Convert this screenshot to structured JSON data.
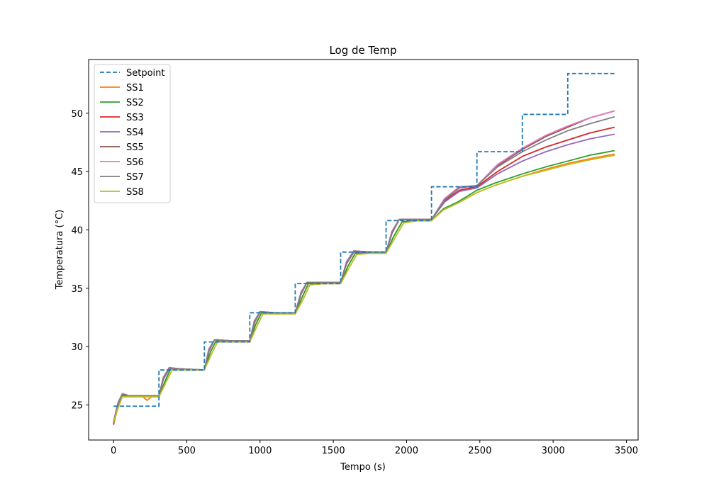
{
  "chart_data": {
    "type": "line",
    "title": "Log de Temp",
    "xlabel": "Tempo (s)",
    "ylabel": "Temperatura (°C)",
    "xlim": [
      -170,
      3580
    ],
    "ylim": [
      22.0,
      54.6
    ],
    "xticks": [
      0,
      500,
      1000,
      1500,
      2000,
      2500,
      3000,
      3500
    ],
    "yticks": [
      25,
      30,
      35,
      40,
      45,
      50
    ],
    "grid": false,
    "legend": "top-left",
    "setpoint": {
      "name": "Setpoint",
      "color": "#1f77b4",
      "dash": true,
      "steps": [
        {
          "t": 0,
          "v": 24.9
        },
        {
          "t": 310,
          "v": 28.0
        },
        {
          "t": 620,
          "v": 30.4
        },
        {
          "t": 930,
          "v": 32.9
        },
        {
          "t": 1240,
          "v": 35.4
        },
        {
          "t": 1550,
          "v": 38.1
        },
        {
          "t": 1860,
          "v": 40.8
        },
        {
          "t": 2170,
          "v": 43.7
        },
        {
          "t": 2480,
          "v": 46.7
        },
        {
          "t": 2790,
          "v": 49.9
        },
        {
          "t": 3100,
          "v": 53.4
        }
      ],
      "t_end": 3420
    },
    "series": [
      {
        "name": "SS1",
        "color": "#ff7f0e",
        "x": [
          0,
          30,
          60,
          80,
          100,
          150,
          200,
          230,
          260,
          310,
          350,
          390,
          450,
          550,
          620,
          660,
          700,
          800,
          930,
          970,
          1010,
          1100,
          1240,
          1290,
          1330,
          1450,
          1550,
          1600,
          1650,
          1760,
          1860,
          1910,
          1970,
          2080,
          2170,
          2250,
          2350,
          2480,
          2600,
          2790,
          2950,
          3100,
          3250,
          3420
        ],
        "values": [
          23.4,
          24.8,
          25.8,
          25.8,
          25.7,
          25.7,
          25.7,
          25.4,
          25.7,
          25.7,
          27.0,
          28.1,
          28.1,
          28.0,
          28.0,
          29.5,
          30.5,
          30.5,
          30.5,
          31.9,
          32.9,
          32.9,
          32.9,
          34.3,
          35.4,
          35.4,
          35.4,
          36.9,
          38.0,
          38.0,
          38.0,
          39.4,
          40.7,
          40.8,
          40.8,
          41.7,
          42.3,
          43.2,
          43.8,
          44.6,
          45.2,
          45.7,
          46.1,
          46.5
        ]
      },
      {
        "name": "SS2",
        "color": "#2ca02c",
        "x": [
          0,
          30,
          60,
          80,
          100,
          200,
          310,
          350,
          390,
          450,
          620,
          660,
          700,
          800,
          930,
          970,
          1010,
          1100,
          1240,
          1290,
          1330,
          1450,
          1550,
          1600,
          1650,
          1760,
          1860,
          1910,
          1970,
          2080,
          2170,
          2250,
          2350,
          2480,
          2600,
          2790,
          2950,
          3100,
          3250,
          3420
        ],
        "values": [
          23.5,
          24.9,
          25.8,
          25.8,
          25.7,
          25.7,
          25.7,
          27.0,
          28.1,
          28.1,
          28.0,
          29.5,
          30.5,
          30.5,
          30.5,
          31.9,
          32.9,
          32.9,
          32.9,
          34.3,
          35.4,
          35.4,
          35.4,
          36.9,
          38.0,
          38.0,
          38.0,
          39.4,
          40.7,
          40.8,
          40.8,
          41.8,
          42.4,
          43.4,
          44.0,
          44.8,
          45.4,
          45.9,
          46.4,
          46.8
        ]
      },
      {
        "name": "SS3",
        "color": "#d62728",
        "x": [
          0,
          30,
          60,
          80,
          100,
          200,
          310,
          340,
          380,
          450,
          620,
          650,
          690,
          800,
          930,
          960,
          1000,
          1100,
          1240,
          1280,
          1320,
          1450,
          1550,
          1590,
          1640,
          1760,
          1860,
          1900,
          1950,
          2080,
          2170,
          2260,
          2360,
          2480,
          2620,
          2790,
          2950,
          3100,
          3250,
          3420
        ],
        "values": [
          23.3,
          24.9,
          25.9,
          25.9,
          25.8,
          25.8,
          25.8,
          27.2,
          28.1,
          28.1,
          28.0,
          29.6,
          30.6,
          30.5,
          30.5,
          32.0,
          33.0,
          32.9,
          32.9,
          34.5,
          35.5,
          35.5,
          35.5,
          37.1,
          38.1,
          38.1,
          38.1,
          39.7,
          40.9,
          40.9,
          40.9,
          42.5,
          43.4,
          43.7,
          45.0,
          46.3,
          47.1,
          47.7,
          48.3,
          48.8
        ]
      },
      {
        "name": "SS4",
        "color": "#9467bd",
        "x": [
          0,
          30,
          60,
          80,
          100,
          200,
          310,
          340,
          380,
          450,
          620,
          650,
          690,
          800,
          930,
          960,
          1000,
          1100,
          1240,
          1280,
          1320,
          1450,
          1550,
          1590,
          1640,
          1760,
          1860,
          1900,
          1950,
          2080,
          2170,
          2260,
          2360,
          2480,
          2620,
          2790,
          2950,
          3100,
          3250,
          3420
        ],
        "values": [
          23.4,
          25.0,
          25.9,
          25.9,
          25.8,
          25.8,
          25.8,
          27.2,
          28.1,
          28.1,
          28.0,
          29.6,
          30.6,
          30.5,
          30.5,
          32.0,
          33.0,
          32.9,
          32.9,
          34.5,
          35.5,
          35.5,
          35.5,
          37.1,
          38.1,
          38.1,
          38.1,
          39.7,
          40.9,
          40.9,
          40.9,
          42.4,
          43.3,
          43.6,
          44.8,
          45.9,
          46.7,
          47.3,
          47.8,
          48.2
        ]
      },
      {
        "name": "SS5",
        "color": "#8c564b",
        "x": [
          0,
          30,
          60,
          80,
          100,
          200,
          310,
          340,
          380,
          450,
          620,
          650,
          690,
          800,
          930,
          960,
          1000,
          1100,
          1240,
          1280,
          1320,
          1450,
          1550,
          1590,
          1640,
          1760,
          1860,
          1900,
          1950,
          2080,
          2170,
          2260,
          2360,
          2480,
          2620,
          2790,
          2950,
          3100,
          3250,
          3420
        ],
        "values": [
          23.5,
          25.1,
          25.9,
          25.9,
          25.8,
          25.8,
          25.8,
          27.3,
          28.2,
          28.1,
          28.0,
          29.7,
          30.6,
          30.5,
          30.5,
          32.1,
          33.0,
          32.9,
          32.9,
          34.6,
          35.5,
          35.5,
          35.5,
          37.2,
          38.2,
          38.1,
          38.1,
          39.8,
          40.9,
          40.9,
          40.9,
          42.6,
          43.6,
          43.8,
          45.5,
          46.9,
          48.0,
          48.8,
          49.6,
          50.2
        ]
      },
      {
        "name": "SS6",
        "color": "#e377c2",
        "x": [
          0,
          30,
          60,
          80,
          100,
          200,
          310,
          340,
          380,
          450,
          620,
          650,
          690,
          800,
          930,
          960,
          1000,
          1100,
          1240,
          1280,
          1320,
          1450,
          1550,
          1590,
          1640,
          1760,
          1860,
          1900,
          1950,
          2080,
          2170,
          2260,
          2360,
          2480,
          2620,
          2790,
          2950,
          3100,
          3250,
          3420
        ],
        "values": [
          23.6,
          25.2,
          26.0,
          25.9,
          25.8,
          25.8,
          25.8,
          27.4,
          28.2,
          28.1,
          28.0,
          29.8,
          30.6,
          30.5,
          30.5,
          32.2,
          33.0,
          32.9,
          32.9,
          34.7,
          35.5,
          35.5,
          35.5,
          37.3,
          38.2,
          38.1,
          38.1,
          39.9,
          40.9,
          40.9,
          40.9,
          42.7,
          43.7,
          43.8,
          45.6,
          47.0,
          48.1,
          48.9,
          49.6,
          50.2
        ]
      },
      {
        "name": "SS7",
        "color": "#7f7f7f",
        "x": [
          0,
          30,
          60,
          80,
          100,
          200,
          310,
          340,
          380,
          450,
          620,
          650,
          690,
          800,
          930,
          960,
          1000,
          1100,
          1240,
          1280,
          1320,
          1450,
          1550,
          1590,
          1640,
          1760,
          1860,
          1900,
          1950,
          2080,
          2170,
          2260,
          2360,
          2480,
          2620,
          2790,
          2950,
          3100,
          3250,
          3420
        ],
        "values": [
          23.5,
          25.1,
          25.9,
          25.9,
          25.8,
          25.8,
          25.8,
          27.3,
          28.2,
          28.1,
          28.0,
          29.7,
          30.6,
          30.5,
          30.5,
          32.1,
          33.0,
          32.9,
          32.9,
          34.6,
          35.5,
          35.5,
          35.5,
          37.2,
          38.2,
          38.1,
          38.1,
          39.8,
          40.9,
          40.9,
          40.9,
          42.6,
          43.6,
          43.8,
          45.4,
          46.7,
          47.7,
          48.5,
          49.1,
          49.7
        ]
      },
      {
        "name": "SS8",
        "color": "#bcbd22",
        "x": [
          0,
          30,
          60,
          80,
          100,
          200,
          310,
          360,
          400,
          450,
          620,
          670,
          710,
          800,
          930,
          980,
          1020,
          1100,
          1240,
          1300,
          1340,
          1450,
          1550,
          1610,
          1660,
          1760,
          1860,
          1920,
          1980,
          2080,
          2170,
          2250,
          2350,
          2480,
          2600,
          2790,
          2950,
          3100,
          3250,
          3420
        ],
        "values": [
          23.5,
          24.7,
          25.7,
          25.7,
          25.7,
          25.7,
          25.7,
          27.0,
          28.0,
          28.0,
          28.0,
          29.4,
          30.4,
          30.4,
          30.4,
          31.8,
          32.8,
          32.8,
          32.8,
          34.2,
          35.3,
          35.4,
          35.4,
          36.8,
          37.9,
          38.0,
          38.0,
          39.3,
          40.6,
          40.8,
          40.8,
          41.7,
          42.3,
          43.2,
          43.8,
          44.6,
          45.1,
          45.6,
          46.0,
          46.4
        ]
      }
    ]
  }
}
